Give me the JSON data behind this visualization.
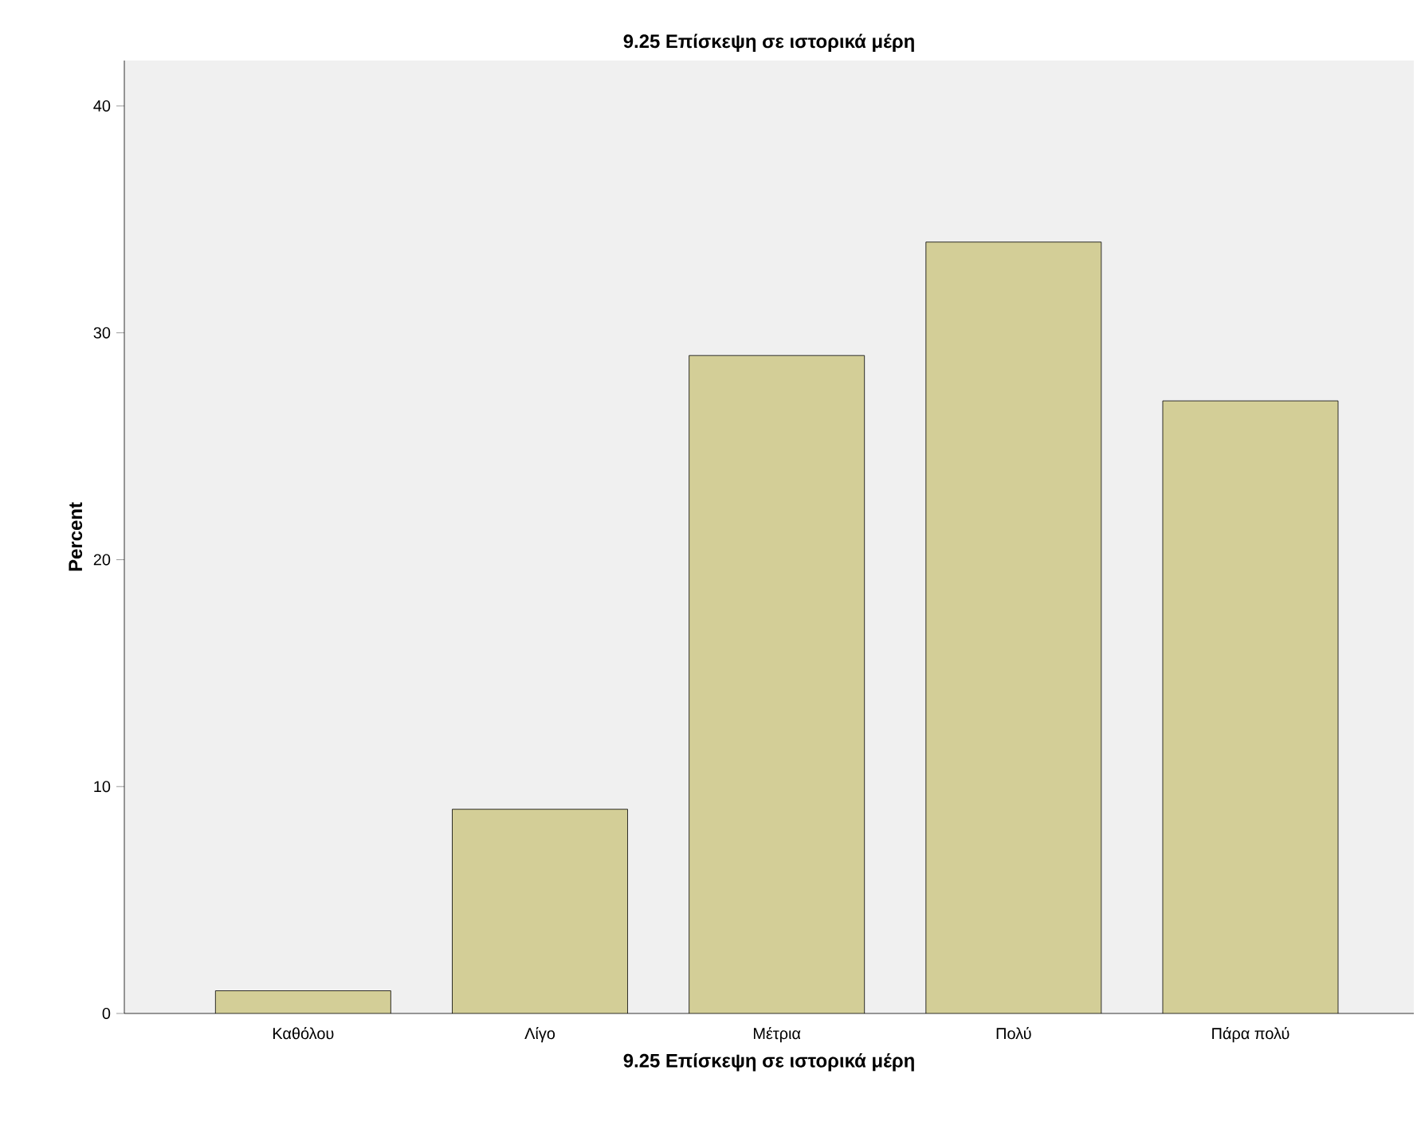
{
  "chart_data": {
    "type": "bar",
    "title": "9.25 Επίσκεψη σε ιστορικά μέρη",
    "xlabel": "9.25 Επίσκεψη σε ιστορικά μέρη",
    "ylabel": "Percent",
    "categories": [
      "Καθόλου",
      "Λίγο",
      "Μέτρια",
      "Πολύ",
      "Πάρα πολύ"
    ],
    "values": [
      1,
      9,
      29,
      34,
      27
    ],
    "color": "#d3ce97",
    "ylim": [
      0,
      42
    ],
    "yticks": [
      0,
      10,
      20,
      30,
      40
    ]
  }
}
